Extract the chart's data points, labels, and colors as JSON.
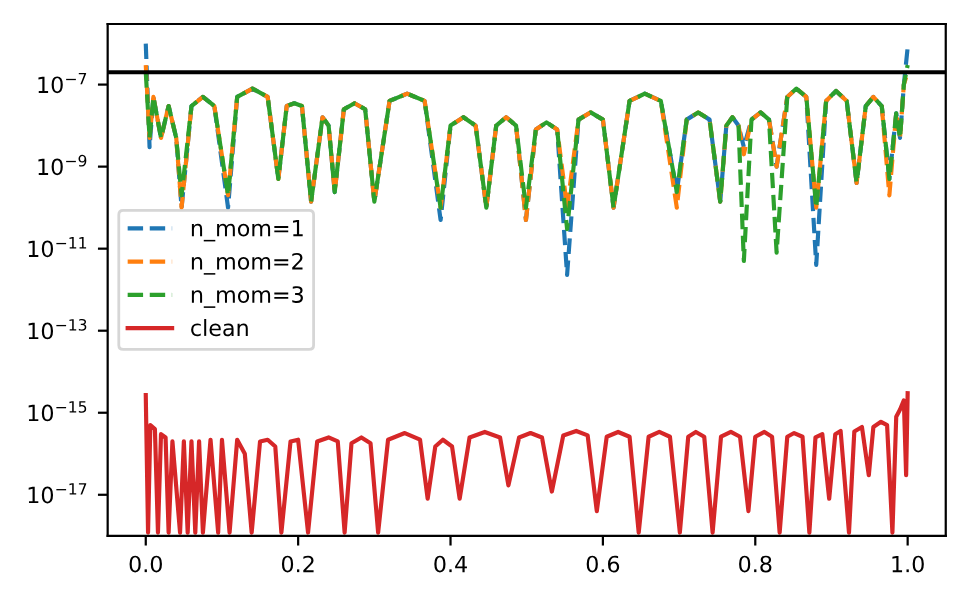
{
  "chart_data": {
    "type": "line",
    "log": "y",
    "grid": false,
    "legend": "center left",
    "marker": "none",
    "xlim": [
      -0.05,
      1.05
    ],
    "ylim": [
      1e-18,
      3e-06
    ],
    "xticks": [
      {
        "value": 0,
        "label": "0.0"
      },
      {
        "value": 0.2,
        "label": "0.2"
      },
      {
        "value": 0.4,
        "label": "0.4"
      },
      {
        "value": 0.6,
        "label": "0.6"
      },
      {
        "value": 0.8,
        "label": "0.8"
      },
      {
        "value": 1.0,
        "label": "1.0"
      }
    ],
    "yticks": [
      {
        "value": 1e-17,
        "label": "10$^{−17}$"
      },
      {
        "value": 1e-15,
        "label": "10$^{−15}$"
      },
      {
        "value": 1e-13,
        "label": "10$^{−13}$"
      },
      {
        "value": 1e-11,
        "label": "10$^{−11}$"
      },
      {
        "value": 1e-09,
        "label": "10$^{−9}$"
      },
      {
        "value": 1e-07,
        "label": "10$^{−7}$"
      }
    ],
    "ref_lines": [
      {
        "axis": "y",
        "value": 2e-07,
        "color": "#000000",
        "line_style": "solid"
      }
    ],
    "series": [
      {
        "name": "n_mom=1",
        "color": "#1f77b4",
        "line_style": "dashed",
        "x": [
          0,
          0.005,
          0.01,
          0.02,
          0.03,
          0.04,
          0.047,
          0.06,
          0.075,
          0.09,
          0.108,
          0.12,
          0.14,
          0.16,
          0.174,
          0.185,
          0.195,
          0.205,
          0.217,
          0.232,
          0.24,
          0.248,
          0.26,
          0.274,
          0.288,
          0.3,
          0.32,
          0.343,
          0.366,
          0.387,
          0.4,
          0.417,
          0.433,
          0.447,
          0.46,
          0.473,
          0.486,
          0.499,
          0.512,
          0.526,
          0.54,
          0.553,
          0.568,
          0.584,
          0.6,
          0.614,
          0.635,
          0.655,
          0.676,
          0.697,
          0.71,
          0.725,
          0.74,
          0.754,
          0.762,
          0.77,
          0.778,
          0.785,
          0.795,
          0.807,
          0.818,
          0.828,
          0.842,
          0.854,
          0.867,
          0.88,
          0.893,
          0.906,
          0.92,
          0.933,
          0.945,
          0.955,
          0.966,
          0.976,
          0.985,
          0.99,
          0.995,
          1.0
        ],
        "values": [
          1e-06,
          3e-09,
          5e-08,
          5e-09,
          3e-08,
          5e-09,
          1e-10,
          3e-08,
          5e-08,
          3e-08,
          1e-10,
          5e-08,
          8e-08,
          5e-08,
          5e-10,
          3e-08,
          3.5e-08,
          3e-08,
          1.4e-10,
          1.6e-08,
          1e-08,
          2.4e-10,
          2.5e-08,
          3.5e-08,
          2.5e-08,
          1.4e-10,
          4e-08,
          6e-08,
          4e-08,
          5e-11,
          1e-08,
          1.6e-08,
          1e-08,
          1e-10,
          1e-08,
          1.6e-08,
          1e-08,
          5e-11,
          8e-09,
          1.2e-08,
          8e-09,
          2.3e-12,
          1.4e-08,
          2.1e-08,
          1.4e-08,
          1e-10,
          4e-08,
          6e-08,
          4e-08,
          2.4e-10,
          1.4e-08,
          2.1e-08,
          1.4e-08,
          1.4e-10,
          1e-08,
          1.6e-08,
          1e-08,
          3e-09,
          1.4e-08,
          2.1e-08,
          1.4e-08,
          1e-09,
          5e-08,
          8e-08,
          5e-08,
          4e-12,
          4e-08,
          7e-08,
          4e-08,
          4e-10,
          3e-08,
          5e-08,
          3e-08,
          5e-10,
          2e-08,
          5e-09,
          1e-07,
          8e-07
        ]
      },
      {
        "name": "n_mom=2",
        "color": "#ff7f0e",
        "line_style": "dashed",
        "x": [
          0,
          0.005,
          0.01,
          0.02,
          0.03,
          0.04,
          0.047,
          0.06,
          0.075,
          0.09,
          0.108,
          0.12,
          0.14,
          0.16,
          0.174,
          0.185,
          0.195,
          0.205,
          0.217,
          0.232,
          0.24,
          0.248,
          0.26,
          0.274,
          0.288,
          0.3,
          0.32,
          0.343,
          0.366,
          0.387,
          0.4,
          0.417,
          0.433,
          0.447,
          0.46,
          0.473,
          0.486,
          0.499,
          0.512,
          0.526,
          0.54,
          0.553,
          0.568,
          0.584,
          0.6,
          0.614,
          0.635,
          0.655,
          0.676,
          0.697,
          0.71,
          0.725,
          0.74,
          0.754,
          0.762,
          0.77,
          0.778,
          0.785,
          0.795,
          0.807,
          0.818,
          0.828,
          0.842,
          0.854,
          0.867,
          0.88,
          0.893,
          0.906,
          0.92,
          0.933,
          0.945,
          0.955,
          0.966,
          0.976,
          0.985,
          0.99,
          0.995,
          1.0
        ],
        "values": [
          3e-07,
          5e-09,
          5e-08,
          5e-09,
          3e-08,
          5e-09,
          1e-10,
          3e-08,
          5e-08,
          3e-08,
          2e-10,
          5e-08,
          8e-08,
          5e-08,
          5e-10,
          3e-08,
          3.5e-08,
          3e-08,
          1.4e-10,
          1.6e-08,
          1e-08,
          2.4e-10,
          2.5e-08,
          3.5e-08,
          2.5e-08,
          1.4e-10,
          4e-08,
          6e-08,
          4e-08,
          1e-10,
          1e-08,
          1.6e-08,
          1e-08,
          1e-10,
          1e-08,
          1.6e-08,
          1e-08,
          5e-11,
          8e-09,
          1.2e-08,
          8e-09,
          1e-10,
          1.4e-08,
          2.1e-08,
          1.4e-08,
          1e-10,
          4e-08,
          6e-08,
          4e-08,
          1e-10,
          1.4e-08,
          2.1e-08,
          1.4e-08,
          1.4e-10,
          1e-08,
          1.6e-08,
          1e-08,
          2e-09,
          1.4e-08,
          2.1e-08,
          1.4e-08,
          1e-09,
          5e-08,
          8e-08,
          5e-08,
          1e-10,
          4e-08,
          7e-08,
          4e-08,
          4e-10,
          3e-08,
          5e-08,
          3e-08,
          2e-10,
          2e-08,
          5e-09,
          1e-07,
          2e-07
        ]
      },
      {
        "name": "n_mom=3",
        "color": "#2ca02c",
        "line_style": "dashed",
        "x": [
          0,
          0.005,
          0.01,
          0.02,
          0.03,
          0.04,
          0.047,
          0.06,
          0.075,
          0.09,
          0.108,
          0.12,
          0.14,
          0.16,
          0.174,
          0.185,
          0.195,
          0.205,
          0.217,
          0.232,
          0.24,
          0.248,
          0.26,
          0.274,
          0.288,
          0.3,
          0.32,
          0.343,
          0.366,
          0.387,
          0.4,
          0.417,
          0.433,
          0.447,
          0.46,
          0.473,
          0.486,
          0.499,
          0.512,
          0.526,
          0.54,
          0.553,
          0.568,
          0.584,
          0.6,
          0.614,
          0.635,
          0.655,
          0.676,
          0.697,
          0.71,
          0.725,
          0.74,
          0.754,
          0.762,
          0.77,
          0.778,
          0.785,
          0.795,
          0.807,
          0.818,
          0.828,
          0.842,
          0.854,
          0.867,
          0.88,
          0.893,
          0.906,
          0.92,
          0.933,
          0.945,
          0.955,
          0.966,
          0.976,
          0.985,
          0.99,
          0.995,
          1.0
        ],
        "values": [
          2e-07,
          5e-09,
          5e-08,
          5e-09,
          3e-08,
          5e-09,
          2e-10,
          3e-08,
          5e-08,
          3e-08,
          2e-10,
          5e-08,
          8e-08,
          5e-08,
          5e-10,
          3e-08,
          3.5e-08,
          3e-08,
          1.4e-10,
          1.6e-08,
          1e-08,
          2.4e-10,
          2.5e-08,
          3.5e-08,
          2.5e-08,
          1.4e-10,
          4e-08,
          6e-08,
          4e-08,
          1e-10,
          1e-08,
          1.6e-08,
          1e-08,
          1e-10,
          1e-08,
          1.6e-08,
          1e-08,
          1e-10,
          8e-09,
          1.2e-08,
          8e-09,
          3e-11,
          1.4e-08,
          2.1e-08,
          1.4e-08,
          1e-10,
          4e-08,
          6e-08,
          4e-08,
          2.4e-10,
          1.4e-08,
          2.1e-08,
          1.4e-08,
          1.4e-10,
          1e-08,
          1.6e-08,
          1e-08,
          5e-12,
          1.4e-08,
          2.1e-08,
          1.4e-08,
          8e-12,
          5e-08,
          8e-08,
          5e-08,
          1e-10,
          4e-08,
          7e-08,
          4e-08,
          4e-10,
          3e-08,
          5e-08,
          3e-08,
          5e-10,
          2e-08,
          5e-09,
          1e-07,
          3e-07
        ]
      },
      {
        "name": "clean",
        "color": "#d62728",
        "line_style": "solid",
        "x": [
          0,
          0.003,
          0.006,
          0.012,
          0.016,
          0.02,
          0.026,
          0.03,
          0.035,
          0.045,
          0.05,
          0.055,
          0.06,
          0.065,
          0.07,
          0.075,
          0.085,
          0.095,
          0.1,
          0.11,
          0.12,
          0.13,
          0.139,
          0.15,
          0.16,
          0.17,
          0.178,
          0.19,
          0.2,
          0.213,
          0.225,
          0.24,
          0.252,
          0.261,
          0.27,
          0.283,
          0.295,
          0.305,
          0.318,
          0.34,
          0.36,
          0.37,
          0.38,
          0.39,
          0.402,
          0.412,
          0.425,
          0.445,
          0.465,
          0.476,
          0.49,
          0.505,
          0.52,
          0.533,
          0.548,
          0.565,
          0.58,
          0.592,
          0.605,
          0.62,
          0.635,
          0.647,
          0.66,
          0.674,
          0.688,
          0.701,
          0.712,
          0.722,
          0.733,
          0.744,
          0.755,
          0.768,
          0.78,
          0.791,
          0.8,
          0.812,
          0.822,
          0.832,
          0.842,
          0.851,
          0.862,
          0.871,
          0.879,
          0.888,
          0.897,
          0.905,
          0.912,
          0.923,
          0.93,
          0.94,
          0.949,
          0.955,
          0.965,
          0.973,
          0.98,
          0.985,
          0.99,
          0.995,
          0.998,
          1.0
        ],
        "values": [
          2.7e-15,
          1.2e-18,
          5e-16,
          4e-16,
          1.2e-18,
          3e-16,
          2.5e-16,
          1.2e-18,
          2e-16,
          1.2e-18,
          2e-16,
          1.2e-18,
          2e-16,
          1.2e-18,
          2e-16,
          1.2e-18,
          2.2e-16,
          1.2e-18,
          2.2e-16,
          1.2e-18,
          2.2e-16,
          1e-16,
          1.2e-18,
          2e-16,
          2.2e-16,
          1.5e-16,
          1.2e-18,
          2e-16,
          2.2e-16,
          1.2e-18,
          2e-16,
          2.5e-16,
          2e-16,
          1.2e-18,
          1.8e-16,
          2.5e-16,
          1.8e-16,
          1.2e-18,
          2.2e-16,
          3.2e-16,
          2.2e-16,
          8e-18,
          1.5e-16,
          2.2e-16,
          1.5e-16,
          8e-18,
          2.5e-16,
          3.4e-16,
          2.5e-16,
          1.7e-17,
          2.5e-16,
          3.2e-16,
          2.5e-16,
          1.2e-17,
          2.8e-16,
          3.6e-16,
          2.8e-16,
          4e-18,
          2.6e-16,
          3.4e-16,
          2.6e-16,
          1.2e-18,
          2.6e-16,
          3.4e-16,
          2.6e-16,
          1.2e-18,
          2.6e-16,
          3.4e-16,
          2.6e-16,
          1.2e-18,
          2.6e-16,
          3.4e-16,
          2.6e-16,
          4e-18,
          2.6e-16,
          3.4e-16,
          2.6e-16,
          1.2e-18,
          2.6e-16,
          3.2e-16,
          2.6e-16,
          1.2e-18,
          2.5e-16,
          3e-16,
          8e-18,
          3e-16,
          3.6e-16,
          1.2e-18,
          3.5e-16,
          4.5e-16,
          3e-17,
          4.5e-16,
          6e-16,
          5e-16,
          1.2e-18,
          8e-16,
          1.2e-15,
          2e-15,
          3e-17,
          3e-15
        ]
      }
    ]
  }
}
